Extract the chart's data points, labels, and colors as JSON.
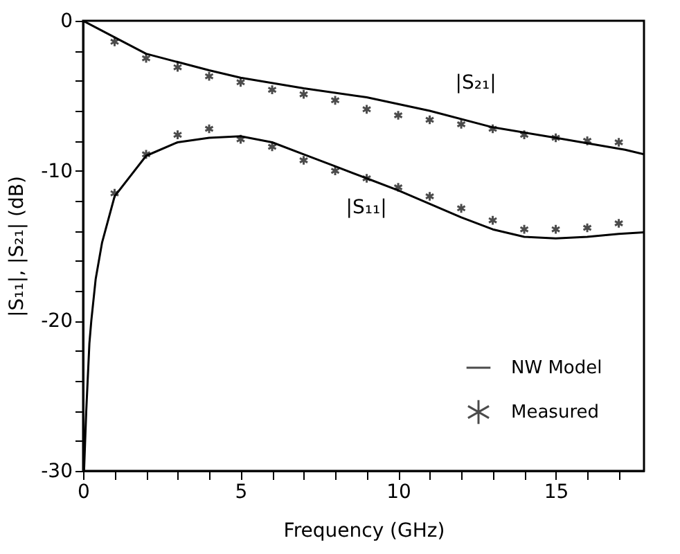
{
  "chart_data": {
    "type": "line",
    "xlabel": "Frequency (GHz)",
    "ylabel": "|S₁₁|, |S₂₁| (dB)",
    "xlim": [
      0,
      17.8
    ],
    "ylim": [
      -30,
      0
    ],
    "xticks": [
      0,
      {
        "value": 1,
        "label": null
      },
      {
        "value": 2,
        "label": null
      },
      {
        "value": 3,
        "label": null
      },
      {
        "value": 4,
        "label": null
      },
      5,
      {
        "value": 6,
        "label": null
      },
      {
        "value": 7,
        "label": null
      },
      {
        "value": 8,
        "label": null
      },
      {
        "value": 9,
        "label": null
      },
      10,
      {
        "value": 11,
        "label": null
      },
      {
        "value": 12,
        "label": null
      },
      {
        "value": 13,
        "label": null
      },
      {
        "value": 14,
        "label": null
      },
      15,
      {
        "value": 16,
        "label": null
      },
      {
        "value": 17,
        "label": null
      }
    ],
    "yticks": [
      -30,
      {
        "value": -28,
        "label": null
      },
      {
        "value": -26,
        "label": null
      },
      {
        "value": -24,
        "label": null
      },
      {
        "value": -22,
        "label": null
      },
      -20,
      {
        "value": -18,
        "label": null
      },
      {
        "value": -16,
        "label": null
      },
      {
        "value": -14,
        "label": null
      },
      {
        "value": -12,
        "label": null
      },
      -10,
      {
        "value": -8,
        "label": null
      },
      {
        "value": -6,
        "label": null
      },
      {
        "value": -4,
        "label": null
      },
      {
        "value": -2,
        "label": null
      },
      0
    ],
    "grid": false,
    "legend": "bottom right",
    "line_style": "solid",
    "series": [
      {
        "name": "NW Model",
        "color": "#000000",
        "x": [
          0,
          1,
          2,
          4,
          5,
          7,
          9,
          11,
          13,
          15,
          17.2,
          17.8
        ],
        "values": [
          0,
          -1.1,
          -2.2,
          -3.3,
          -3.8,
          -4.5,
          -5.1,
          -6.0,
          -7.1,
          -7.8,
          -8.6,
          -8.9
        ]
      },
      {
        "color": "#000000",
        "x": [
          0.03,
          0.1,
          0.2,
          0.26,
          0.4,
          0.6,
          1,
          2,
          3,
          4,
          5,
          6,
          7,
          8,
          9,
          10,
          11,
          12,
          13,
          14,
          15,
          16,
          17,
          17.8
        ],
        "values": [
          -30,
          -26,
          -21.5,
          -20,
          -17.2,
          -14.8,
          -11.7,
          -9.0,
          -8.1,
          -7.8,
          -7.7,
          -8.1,
          -8.9,
          -9.7,
          -10.5,
          -11.3,
          -12.2,
          -13.1,
          -13.9,
          -14.4,
          -14.5,
          -14.4,
          -14.2,
          -14.1
        ]
      },
      {
        "name": "Measured",
        "type": "scatter",
        "marker": "cross",
        "color": "#000000",
        "x": [
          1,
          2,
          3,
          4,
          5,
          6,
          7,
          8,
          9,
          10,
          11,
          12,
          13,
          14,
          15,
          16,
          17
        ],
        "values": [
          -1.4,
          -2.5,
          -3.1,
          -3.7,
          -4.1,
          -4.6,
          -4.9,
          -5.3,
          -5.9,
          -6.3,
          -6.6,
          -6.9,
          -7.2,
          -7.6,
          -7.8,
          -8.0,
          -8.1
        ]
      },
      {
        "type": "scatter",
        "marker": "cross",
        "color": "#000000",
        "x": [
          1,
          2,
          3,
          4,
          5,
          6,
          7,
          8,
          9,
          10,
          11,
          12,
          13,
          14,
          15,
          16,
          17
        ],
        "values": [
          -11.5,
          -8.9,
          -7.6,
          -7.2,
          -7.9,
          -8.4,
          -9.3,
          -10.0,
          -10.5,
          -11.1,
          -11.7,
          -12.5,
          -13.3,
          -13.9,
          -13.9,
          -13.8,
          -13.5
        ]
      }
    ],
    "annotations": [
      "|S₂₁|",
      "|S₁₁|"
    ]
  }
}
